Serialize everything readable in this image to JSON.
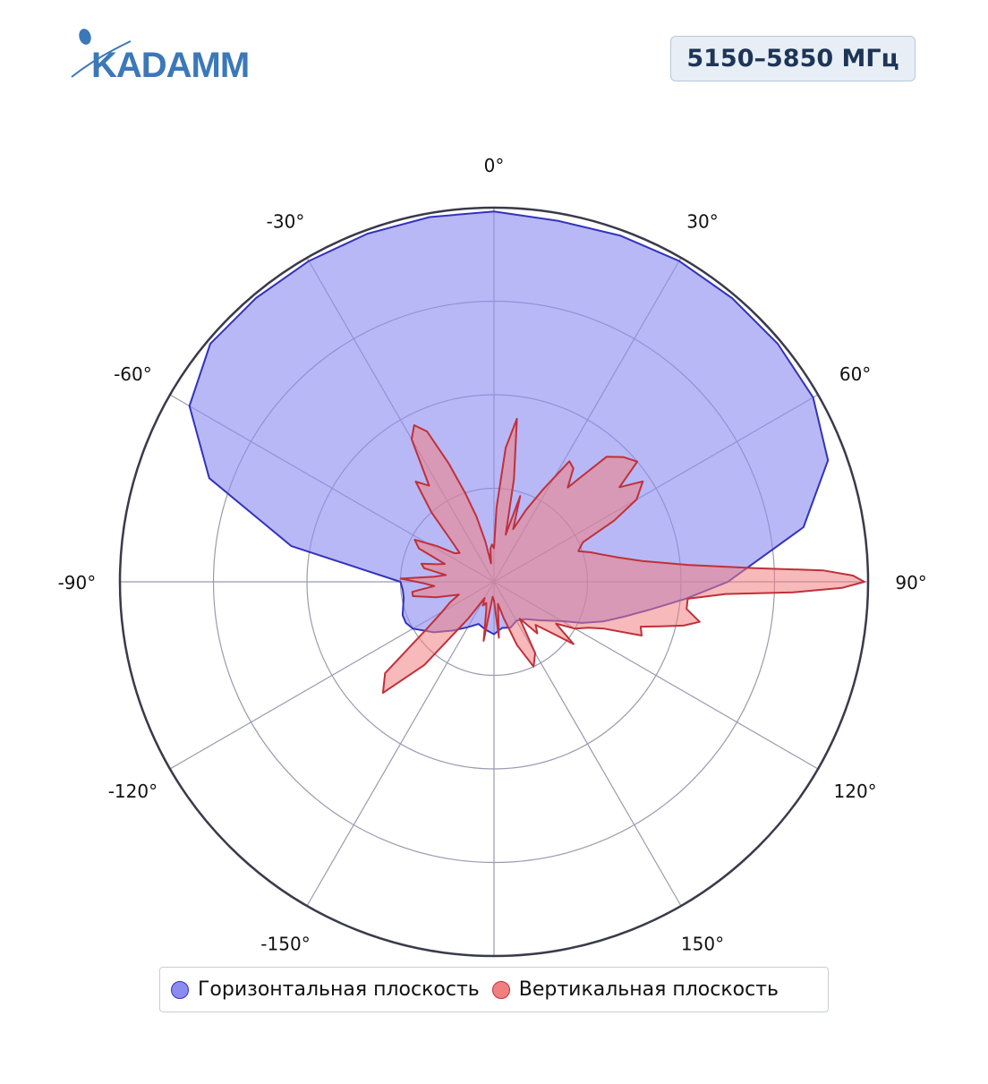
{
  "header": {
    "logo_text": "KADAMM",
    "frequency_badge": "5150–5850 МГц"
  },
  "colors": {
    "horizontal_fill": "#8c8cf0",
    "horizontal_line": "#3333bb",
    "vertical_fill": "#f08080",
    "vertical_line": "#c0303a",
    "grid": "#9a9ab0",
    "outer_ring": "#3a3a4a",
    "logo": "#3b78b8"
  },
  "legend": {
    "items": [
      {
        "label": "Горизонтальная плоскость",
        "color": "#8c8cf0",
        "stroke": "#3333bb"
      },
      {
        "label": "Вертикальная плоскость",
        "color": "#f08080",
        "stroke": "#c0303a"
      }
    ]
  },
  "chart_data": {
    "type": "polar-area",
    "title": "",
    "angular_direction": "clockwise",
    "zero_direction": "top",
    "radial_range": [
      0,
      1
    ],
    "radial_grid": [
      0.25,
      0.5,
      0.75,
      1.0
    ],
    "angular_ticks": [
      0,
      30,
      60,
      90,
      120,
      150,
      180,
      -150,
      -120,
      -90,
      -60,
      -30
    ],
    "angular_tick_labels": [
      "0°",
      "30°",
      "60°",
      "90°",
      "120°",
      "150°",
      "",
      "-150°",
      "-120°",
      "-90°",
      "-60°",
      "-30°"
    ],
    "legend_position": "bottom",
    "series": [
      {
        "name": "Горизонтальная плоскость",
        "theta": [
          0,
          10,
          20,
          30,
          40,
          50,
          60,
          70,
          80,
          90,
          95,
          100,
          105,
          110,
          115,
          120,
          130,
          140,
          150,
          160,
          170,
          180,
          -170,
          -160,
          -150,
          -140,
          -130,
          -120,
          -115,
          -110,
          -100,
          -95,
          -90,
          -80,
          -70,
          -60,
          -50,
          -40,
          -30,
          -20,
          -10
        ],
        "r": [
          0.99,
          0.98,
          0.985,
          0.99,
          0.99,
          0.99,
          0.985,
          0.95,
          0.84,
          0.625,
          0.515,
          0.425,
          0.36,
          0.31,
          0.26,
          0.21,
          0.16,
          0.13,
          0.12,
          0.13,
          0.125,
          0.14,
          0.13,
          0.12,
          0.14,
          0.17,
          0.21,
          0.25,
          0.26,
          0.26,
          0.245,
          0.245,
          0.25,
          0.55,
          0.81,
          0.94,
          0.99,
          0.99,
          0.99,
          0.99,
          0.99
        ]
      },
      {
        "name": "Вертикальная плоскость",
        "theta": [
          0,
          2,
          5,
          8,
          11,
          14,
          17,
          20,
          24,
          28,
          32,
          35,
          38,
          42,
          46,
          50,
          53,
          56,
          60,
          63,
          66,
          70,
          73,
          76,
          79,
          82,
          85,
          87,
          88,
          89,
          90,
          91,
          92,
          93,
          95,
          98,
          101,
          103,
          105,
          107,
          110,
          113,
          116,
          120,
          124,
          128,
          132,
          136,
          140,
          145,
          150,
          155,
          160,
          165,
          170,
          175,
          180,
          -175,
          -170,
          -165,
          -160,
          -155,
          -150,
          -145,
          -140,
          -135,
          -130,
          -125,
          -120,
          -115,
          -110,
          -105,
          -100,
          -97,
          -94,
          -91,
          -88,
          -85,
          -82,
          -79,
          -76,
          -73,
          -70,
          -66,
          -62,
          -58,
          -54,
          -50,
          -46,
          -42,
          -38,
          -34,
          -30,
          -27,
          -24,
          -21,
          -18,
          -15,
          -12,
          -9,
          -6,
          -3
        ],
        "r": [
          0.09,
          0.2,
          0.36,
          0.44,
          0.28,
          0.13,
          0.24,
          0.15,
          0.21,
          0.28,
          0.38,
          0.37,
          0.32,
          0.45,
          0.48,
          0.5,
          0.42,
          0.48,
          0.44,
          0.36,
          0.26,
          0.24,
          0.27,
          0.3,
          0.34,
          0.4,
          0.52,
          0.7,
          0.88,
          0.96,
          0.99,
          0.93,
          0.8,
          0.62,
          0.52,
          0.52,
          0.56,
          0.52,
          0.46,
          0.41,
          0.42,
          0.32,
          0.28,
          0.25,
          0.2,
          0.27,
          0.2,
          0.16,
          0.18,
          0.12,
          0.22,
          0.25,
          0.18,
          0.1,
          0.06,
          0.15,
          0.05,
          0.04,
          0.16,
          0.08,
          0.06,
          0.07,
          0.05,
          0.12,
          0.29,
          0.42,
          0.38,
          0.22,
          0.16,
          0.13,
          0.1,
          0.16,
          0.22,
          0.22,
          0.16,
          0.19,
          0.25,
          0.16,
          0.13,
          0.19,
          0.2,
          0.16,
          0.14,
          0.22,
          0.24,
          0.18,
          0.13,
          0.12,
          0.16,
          0.25,
          0.34,
          0.31,
          0.44,
          0.47,
          0.44,
          0.34,
          0.25,
          0.18,
          0.11,
          0.05,
          0.09,
          0.1
        ]
      }
    ]
  }
}
